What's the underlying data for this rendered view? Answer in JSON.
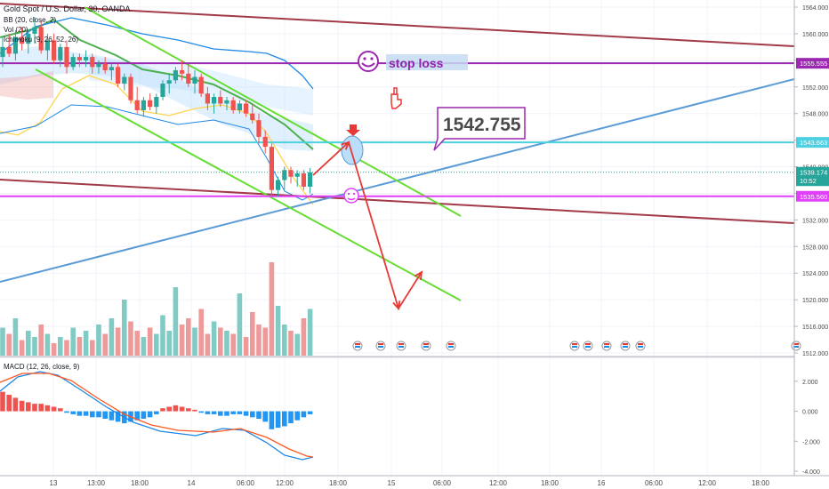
{
  "header": {
    "symbol_line": "Gold Spot / U.S. Dollar, 30, OANDA",
    "bb_line": "BB (20, close, 2)",
    "vol_line": "Vol (20)",
    "ichimoku_line": "Ichimoku (9, 26, 52, 26)"
  },
  "annotations": {
    "stop_loss": "stop loss",
    "target_callout": "1542.755"
  },
  "colors": {
    "up_candle": "#26a69a",
    "down_candle": "#ef5350",
    "purple_line": "#9c27b0",
    "cyan_line": "#4dd0e1",
    "magenta_line": "#e040fb",
    "channel_green": "#66dd33",
    "blue_trend": "#5b9bd5",
    "dark_red_trend": "#a33a48",
    "macd_line": "#1e88e5",
    "signal_line": "#ff5722",
    "arrow_red": "#e53935"
  },
  "price_axis": {
    "ticks": [
      "1564.000",
      "1560.000",
      "1556.000",
      "1552.000",
      "1548.000",
      "1544.000",
      "1540.000",
      "1536.000",
      "1532.000",
      "1528.000",
      "1524.000",
      "1520.000",
      "1516.000",
      "1512.000"
    ],
    "labels": [
      {
        "text": "1555.555",
        "price": 1555.555,
        "bg": "#9c27b0",
        "fg": "#ffffff"
      },
      {
        "text": "1543.663",
        "price": 1543.663,
        "bg": "#4dd0e1",
        "fg": "#ffffff"
      },
      {
        "text": "1539.174",
        "price": 1539.174,
        "bg": "#26a69a",
        "fg": "#ffffff"
      },
      {
        "text": "10:52",
        "price": 1537.9,
        "bg": "#26a69a",
        "fg": "#ffffff"
      },
      {
        "text": "1535.560",
        "price": 1535.56,
        "bg": "#e040fb",
        "fg": "#ffffff"
      }
    ]
  },
  "macd_axis": {
    "ticks": [
      "2.000",
      "0.000",
      "-2.000",
      "-4.000"
    ]
  },
  "macd_legend": "MACD (12, 26, close, 9)",
  "time_axis": {
    "ticks": [
      "13",
      "13:00",
      "18:00",
      "14",
      "06:00",
      "12:00",
      "18:00",
      "15",
      "06:00",
      "12:00",
      "18:00",
      "16",
      "06:00",
      "12:00",
      "18:00"
    ]
  },
  "chart_data": {
    "type": "candlestick",
    "timeframe": "30 min",
    "y_range": [
      1512,
      1564
    ],
    "macd_range": [
      -4,
      3
    ],
    "candles": [
      {
        "o": 1556.5,
        "h": 1559.5,
        "l": 1555.0,
        "c": 1558.0
      },
      {
        "o": 1558.0,
        "h": 1560.0,
        "l": 1556.5,
        "c": 1557.0
      },
      {
        "o": 1557.0,
        "h": 1560.5,
        "l": 1556.0,
        "c": 1559.5
      },
      {
        "o": 1559.5,
        "h": 1561.0,
        "l": 1557.5,
        "c": 1558.5
      },
      {
        "o": 1558.5,
        "h": 1560.5,
        "l": 1557.0,
        "c": 1560.0
      },
      {
        "o": 1560.0,
        "h": 1562.5,
        "l": 1558.5,
        "c": 1561.0
      },
      {
        "o": 1561.0,
        "h": 1562.0,
        "l": 1557.0,
        "c": 1557.5
      },
      {
        "o": 1557.5,
        "h": 1560.0,
        "l": 1556.0,
        "c": 1559.0
      },
      {
        "o": 1559.0,
        "h": 1560.0,
        "l": 1555.5,
        "c": 1556.0
      },
      {
        "o": 1556.0,
        "h": 1558.5,
        "l": 1555.0,
        "c": 1558.0
      },
      {
        "o": 1558.0,
        "h": 1559.0,
        "l": 1554.0,
        "c": 1555.0
      },
      {
        "o": 1555.0,
        "h": 1557.0,
        "l": 1554.5,
        "c": 1556.5
      },
      {
        "o": 1556.5,
        "h": 1557.0,
        "l": 1555.0,
        "c": 1556.0
      },
      {
        "o": 1556.0,
        "h": 1557.5,
        "l": 1555.0,
        "c": 1556.5
      },
      {
        "o": 1556.5,
        "h": 1557.0,
        "l": 1554.0,
        "c": 1555.0
      },
      {
        "o": 1555.0,
        "h": 1556.0,
        "l": 1554.0,
        "c": 1555.5
      },
      {
        "o": 1555.5,
        "h": 1556.5,
        "l": 1554.0,
        "c": 1554.5
      },
      {
        "o": 1554.5,
        "h": 1555.5,
        "l": 1553.0,
        "c": 1555.0
      },
      {
        "o": 1555.0,
        "h": 1555.5,
        "l": 1552.0,
        "c": 1552.5
      },
      {
        "o": 1552.5,
        "h": 1554.0,
        "l": 1551.5,
        "c": 1553.5
      },
      {
        "o": 1553.5,
        "h": 1554.0,
        "l": 1549.5,
        "c": 1550.0
      },
      {
        "o": 1550.0,
        "h": 1552.0,
        "l": 1548.0,
        "c": 1548.5
      },
      {
        "o": 1548.5,
        "h": 1550.5,
        "l": 1547.5,
        "c": 1550.0
      },
      {
        "o": 1550.0,
        "h": 1551.0,
        "l": 1548.5,
        "c": 1549.0
      },
      {
        "o": 1549.0,
        "h": 1551.0,
        "l": 1548.0,
        "c": 1550.5
      },
      {
        "o": 1550.5,
        "h": 1553.0,
        "l": 1550.0,
        "c": 1552.5
      },
      {
        "o": 1552.5,
        "h": 1554.0,
        "l": 1551.0,
        "c": 1553.0
      },
      {
        "o": 1553.0,
        "h": 1555.0,
        "l": 1552.5,
        "c": 1554.5
      },
      {
        "o": 1554.5,
        "h": 1556.0,
        "l": 1553.0,
        "c": 1554.0
      },
      {
        "o": 1554.0,
        "h": 1555.5,
        "l": 1552.0,
        "c": 1552.5
      },
      {
        "o": 1552.5,
        "h": 1554.5,
        "l": 1551.0,
        "c": 1553.5
      },
      {
        "o": 1553.5,
        "h": 1554.0,
        "l": 1550.5,
        "c": 1551.0
      },
      {
        "o": 1551.0,
        "h": 1552.0,
        "l": 1548.5,
        "c": 1549.5
      },
      {
        "o": 1549.5,
        "h": 1551.0,
        "l": 1548.0,
        "c": 1550.5
      },
      {
        "o": 1550.5,
        "h": 1551.5,
        "l": 1549.0,
        "c": 1549.5
      },
      {
        "o": 1549.5,
        "h": 1550.5,
        "l": 1548.5,
        "c": 1550.0
      },
      {
        "o": 1550.0,
        "h": 1550.5,
        "l": 1548.0,
        "c": 1548.5
      },
      {
        "o": 1548.5,
        "h": 1550.0,
        "l": 1548.0,
        "c": 1549.5
      },
      {
        "o": 1549.5,
        "h": 1550.0,
        "l": 1547.5,
        "c": 1548.0
      },
      {
        "o": 1548.0,
        "h": 1549.5,
        "l": 1546.5,
        "c": 1547.0
      },
      {
        "o": 1547.0,
        "h": 1548.0,
        "l": 1543.5,
        "c": 1544.5
      },
      {
        "o": 1544.5,
        "h": 1545.5,
        "l": 1542.0,
        "c": 1543.0
      },
      {
        "o": 1543.0,
        "h": 1543.5,
        "l": 1535.5,
        "c": 1536.5
      },
      {
        "o": 1536.5,
        "h": 1538.5,
        "l": 1535.5,
        "c": 1538.0
      },
      {
        "o": 1538.0,
        "h": 1540.0,
        "l": 1536.5,
        "c": 1539.5
      },
      {
        "o": 1539.5,
        "h": 1540.0,
        "l": 1537.5,
        "c": 1538.5
      },
      {
        "o": 1538.5,
        "h": 1539.5,
        "l": 1537.0,
        "c": 1539.0
      },
      {
        "o": 1539.0,
        "h": 1539.5,
        "l": 1536.5,
        "c": 1537.0
      },
      {
        "o": 1537.0,
        "h": 1539.8,
        "l": 1536.0,
        "c": 1539.17
      }
    ],
    "volume": [
      9,
      7,
      12,
      5,
      8,
      6,
      10,
      7,
      4,
      6,
      5,
      9,
      6,
      8,
      5,
      10,
      7,
      12,
      9,
      18,
      11,
      8,
      6,
      9,
      7,
      13,
      8,
      22,
      10,
      12,
      9,
      15,
      7,
      11,
      9,
      8,
      7,
      20,
      6,
      14,
      10,
      9,
      30,
      16,
      10,
      8,
      7,
      12,
      15
    ],
    "macd": [
      1.3,
      1.1,
      0.9,
      0.7,
      0.6,
      0.5,
      0.5,
      0.4,
      0.3,
      0.2,
      -0.1,
      -0.2,
      -0.3,
      -0.3,
      -0.4,
      -0.4,
      -0.5,
      -0.6,
      -0.7,
      -0.8,
      -0.7,
      -0.6,
      -0.5,
      -0.4,
      -0.2,
      0.2,
      0.3,
      0.4,
      0.3,
      0.2,
      0.1,
      -0.1,
      -0.2,
      -0.2,
      -0.3,
      -0.3,
      -0.2,
      -0.2,
      -0.3,
      -0.4,
      -0.5,
      -0.7,
      -1.2,
      -1.1,
      -1.0,
      -0.8,
      -0.6,
      -0.4,
      -0.2
    ]
  }
}
